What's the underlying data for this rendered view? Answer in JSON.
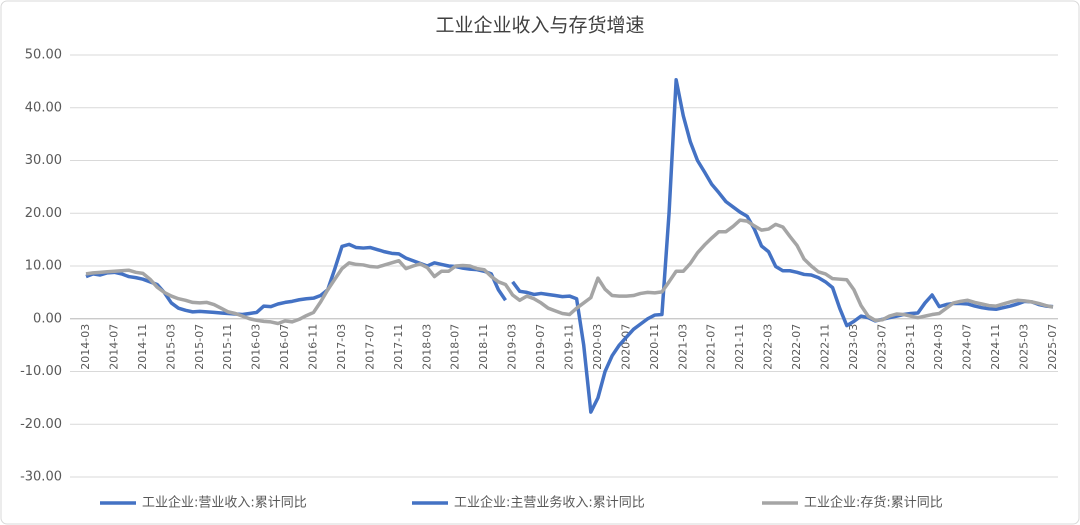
{
  "chart_data": {
    "type": "line",
    "title": "工业企业收入与存货增速",
    "categories": [
      "2014-03",
      null,
      null,
      null,
      "2014-07",
      null,
      null,
      null,
      "2014-11",
      null,
      null,
      null,
      "2015-03",
      null,
      null,
      null,
      "2015-07",
      null,
      null,
      null,
      "2015-11",
      null,
      null,
      null,
      "2016-03",
      null,
      null,
      null,
      "2016-07",
      null,
      null,
      null,
      "2016-11",
      null,
      null,
      null,
      "2017-03",
      null,
      null,
      null,
      "2017-07",
      null,
      null,
      null,
      "2017-11",
      null,
      null,
      null,
      "2018-03",
      null,
      null,
      null,
      "2018-07",
      null,
      null,
      null,
      "2018-11",
      null,
      null,
      null,
      "2019-03",
      null,
      null,
      null,
      "2019-07",
      null,
      null,
      null,
      "2019-11",
      null,
      null,
      null,
      "2020-03",
      null,
      null,
      null,
      "2020-07",
      null,
      null,
      null,
      "2020-11",
      null,
      null,
      null,
      "2021-03",
      null,
      null,
      null,
      "2021-07",
      null,
      null,
      null,
      "2021-11",
      null,
      null,
      null,
      "2022-03",
      null,
      null,
      null,
      "2022-07",
      null,
      null,
      null,
      "2022-11",
      null,
      null,
      null,
      "2023-03",
      null,
      null,
      null,
      "2023-07",
      null,
      null,
      null,
      "2023-11",
      null,
      null,
      null,
      "2024-03",
      null,
      null,
      null,
      "2024-07",
      null,
      null,
      null,
      "2024-11",
      null,
      null,
      null,
      "2025-03",
      null,
      null,
      null,
      "2025-07"
    ],
    "series": [
      {
        "name": "工业企业:营业收入:累计同比",
        "color": "#4472c4",
        "values": [
          null,
          null,
          null,
          null,
          null,
          null,
          null,
          null,
          null,
          null,
          null,
          null,
          null,
          null,
          null,
          null,
          null,
          null,
          null,
          null,
          null,
          null,
          null,
          null,
          null,
          null,
          null,
          null,
          null,
          null,
          null,
          null,
          null,
          null,
          null,
          null,
          null,
          null,
          null,
          null,
          null,
          null,
          null,
          null,
          null,
          null,
          null,
          null,
          null,
          null,
          null,
          null,
          null,
          null,
          null,
          null,
          null,
          null,
          null,
          null,
          7.0,
          5.2,
          5.0,
          4.6,
          4.8,
          4.6,
          4.4,
          4.2,
          4.3,
          3.8,
          -5,
          -17.7,
          -15.0,
          -10.0,
          -7.0,
          -5.0,
          -3.5,
          -2.0,
          -1.0,
          0.0,
          0.7,
          0.8,
          20,
          45.3,
          38.5,
          33.5,
          30.0,
          27.8,
          25.5,
          23.9,
          22.2,
          21.2,
          20.2,
          19.4,
          17.0,
          13.8,
          12.7,
          9.9,
          9.1,
          9.1,
          8.8,
          8.4,
          8.3,
          7.8,
          7.0,
          5.9,
          2.0,
          -1.3,
          -0.5,
          0.5,
          0.2,
          -0.4,
          -0.1,
          0.2,
          0.5,
          0.8,
          1.0,
          1.1,
          3.0,
          4.5,
          2.3,
          2.7,
          2.9,
          2.9,
          2.8,
          2.4,
          2.1,
          1.9,
          1.8,
          2.1,
          2.4,
          2.8,
          3.3,
          3.2,
          2.7,
          2.4,
          2.3
        ]
      },
      {
        "name": "工业企业:主营业务收入:累计同比",
        "color": "#4472c4",
        "values": [
          8.0,
          8.5,
          8.3,
          8.7,
          8.8,
          8.5,
          8.0,
          7.8,
          7.5,
          7.0,
          6.5,
          5.0,
          3.0,
          2.0,
          1.6,
          1.3,
          1.4,
          1.3,
          1.2,
          1.1,
          1.0,
          0.9,
          0.8,
          1.0,
          1.2,
          2.4,
          2.3,
          2.8,
          3.1,
          3.3,
          3.6,
          3.8,
          3.9,
          4.4,
          5.5,
          9.5,
          13.7,
          14.1,
          13.5,
          13.4,
          13.5,
          13.1,
          12.7,
          12.4,
          12.3,
          11.5,
          11.0,
          10.5,
          10.0,
          10.6,
          10.3,
          10.0,
          9.9,
          9.6,
          9.4,
          9.3,
          9.0,
          8.5,
          5.5,
          3.5,
          null,
          null,
          null,
          null,
          null,
          null,
          null,
          null,
          null,
          null,
          null,
          null,
          null,
          null,
          null,
          null,
          null,
          null,
          null,
          null,
          null,
          null,
          null,
          null,
          null,
          null,
          null,
          null,
          null,
          null,
          null,
          null,
          null,
          null,
          null,
          null,
          null,
          null,
          null,
          null,
          null,
          null,
          null,
          null,
          null,
          null,
          null,
          null,
          null,
          null,
          null,
          null,
          null,
          null,
          null,
          null,
          null,
          null,
          null,
          null,
          null,
          null,
          null,
          null,
          null,
          null,
          null,
          null,
          null,
          null,
          null,
          null,
          null,
          null,
          null,
          null,
          null
        ]
      },
      {
        "name": "工业企业:存货:累计同比",
        "color": "#a5a5a5",
        "values": [
          8.5,
          8.7,
          8.8,
          8.9,
          9.0,
          9.1,
          9.2,
          8.8,
          8.6,
          7.5,
          6.0,
          5.0,
          4.3,
          3.8,
          3.5,
          3.1,
          3.0,
          3.1,
          2.7,
          2.0,
          1.3,
          1.0,
          0.5,
          0.0,
          -0.3,
          -0.5,
          -0.6,
          -0.9,
          -0.4,
          -0.6,
          -0.1,
          0.6,
          1.2,
          3.2,
          5.5,
          7.5,
          9.5,
          10.6,
          10.3,
          10.2,
          9.9,
          9.8,
          10.2,
          10.6,
          11.0,
          9.5,
          10.0,
          10.4,
          9.7,
          8.0,
          9.0,
          9.0,
          10.0,
          10.1,
          10.0,
          9.5,
          9.3,
          8.0,
          7.0,
          6.5,
          4.5,
          3.5,
          4.3,
          3.8,
          3.0,
          2.0,
          1.5,
          1.0,
          0.8,
          2.0,
          3.0,
          4.0,
          7.7,
          5.6,
          4.4,
          4.3,
          4.3,
          4.4,
          4.8,
          5.0,
          4.9,
          5.1,
          7.0,
          9.0,
          9.0,
          10.5,
          12.5,
          14.0,
          15.3,
          16.5,
          16.5,
          17.5,
          18.7,
          18.5,
          17.6,
          16.8,
          17.0,
          17.9,
          17.4,
          15.6,
          13.9,
          11.3,
          10.0,
          8.9,
          8.5,
          7.6,
          7.5,
          7.4,
          5.5,
          2.5,
          0.5,
          -0.3,
          -0.2,
          0.5,
          0.9,
          0.8,
          0.5,
          0.2,
          0.5,
          0.8,
          1.0,
          2.0,
          3.0,
          3.3,
          3.5,
          3.1,
          2.8,
          2.5,
          2.4,
          2.8,
          3.2,
          3.5,
          3.4,
          3.2,
          2.9,
          2.5,
          2.2
        ]
      }
    ],
    "ylim": [
      -30,
      50
    ],
    "yticks": [
      {
        "value": -30,
        "label": "-30.00"
      },
      {
        "value": -20,
        "label": "-20.00"
      },
      {
        "value": -10,
        "label": "-10.00"
      },
      {
        "value": 0,
        "label": "0.00"
      },
      {
        "value": 10,
        "label": "10.00"
      },
      {
        "value": 20,
        "label": "20.00"
      },
      {
        "value": 30,
        "label": "30.00"
      },
      {
        "value": 40,
        "label": "40.00"
      },
      {
        "value": 50,
        "label": "50.00"
      }
    ],
    "grid": true,
    "legend": "bottom"
  }
}
